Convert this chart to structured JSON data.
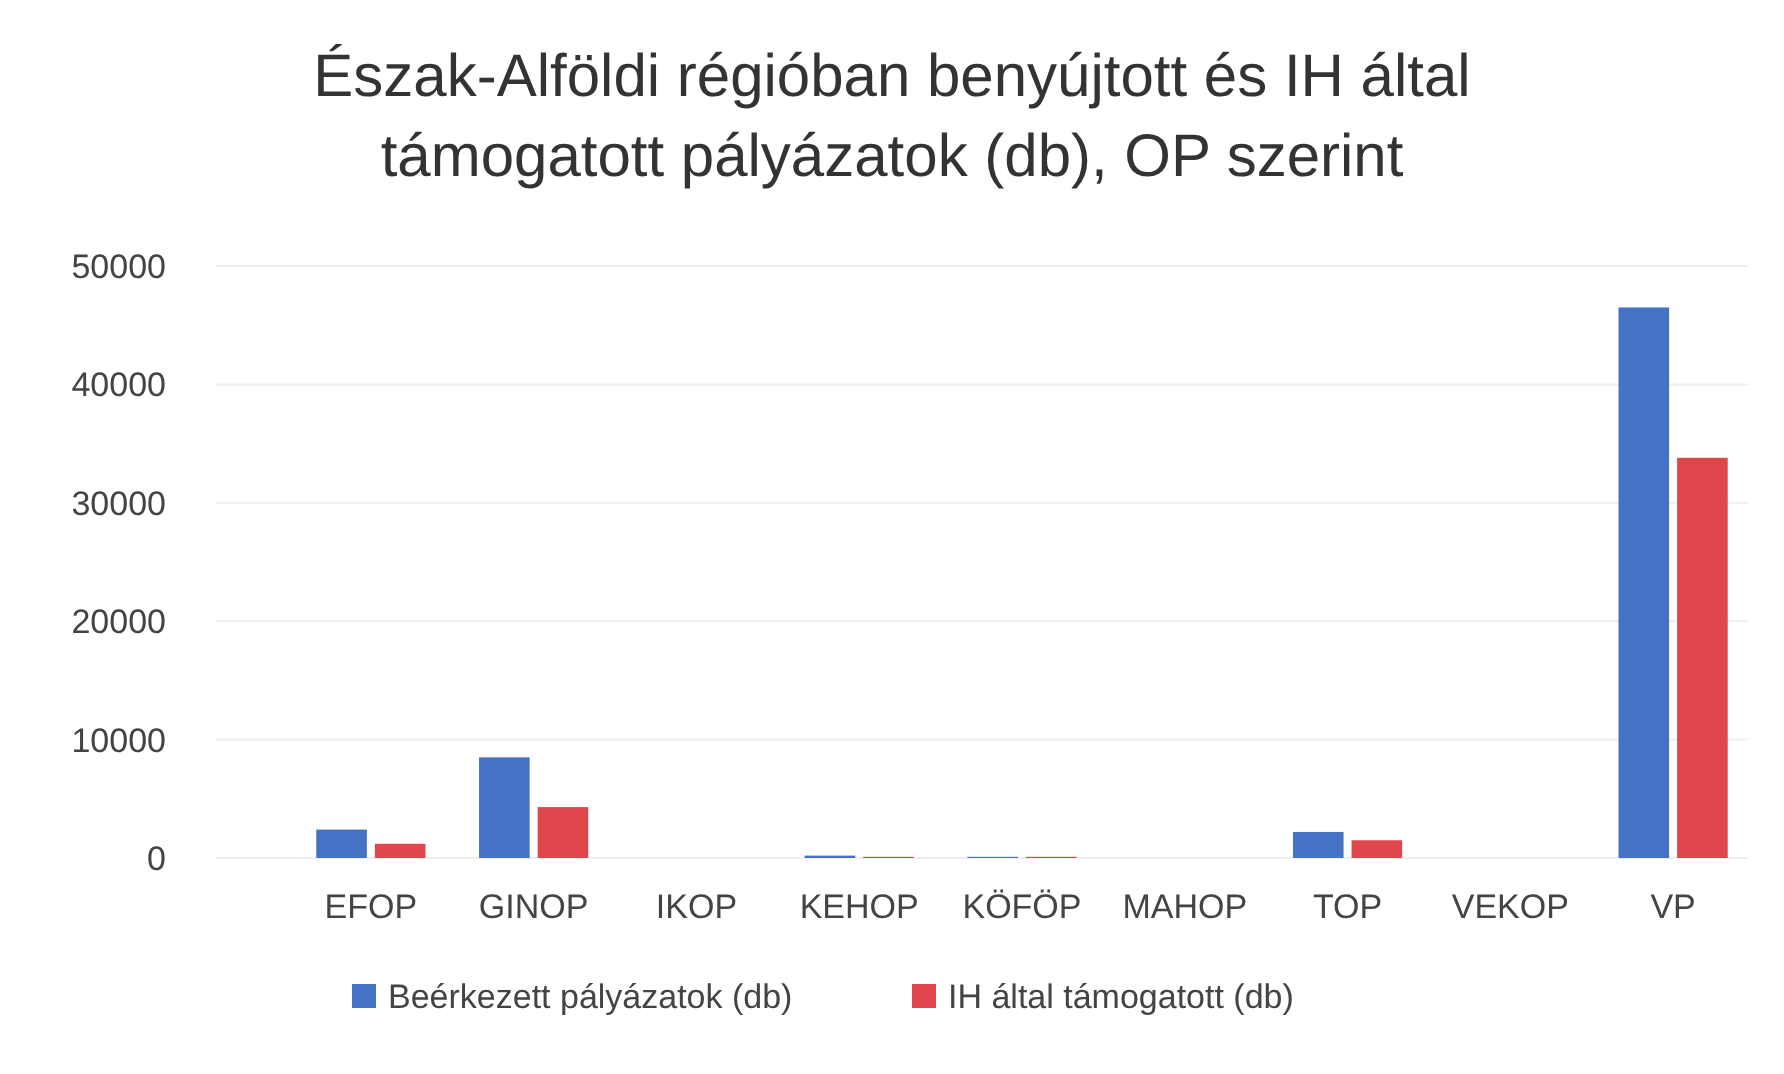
{
  "chart_data": {
    "type": "bar",
    "title": "Észak-Alföldi régióban benyújtott és IH által támogatott pályázatok (db), OP szerint",
    "categories": [
      "EFOP",
      "GINOP",
      "IKOP",
      "KEHOP",
      "KÖFÖP",
      "MAHOP",
      "TOP",
      "VEKOP",
      "VP"
    ],
    "series": [
      {
        "name": "Beérkezett pályázatok (db)",
        "color": "#4472c4",
        "values": [
          2400,
          8500,
          0,
          200,
          100,
          0,
          2200,
          0,
          46500
        ]
      },
      {
        "name": "IH által támogatott (db)",
        "color": "#e0474c",
        "values": [
          1200,
          4300,
          0,
          100,
          100,
          0,
          1500,
          0,
          33800
        ]
      }
    ],
    "ylim": [
      0,
      50000
    ],
    "yticks": [
      0,
      10000,
      20000,
      30000,
      40000,
      50000
    ],
    "grid": "y",
    "legend": "bottom"
  }
}
